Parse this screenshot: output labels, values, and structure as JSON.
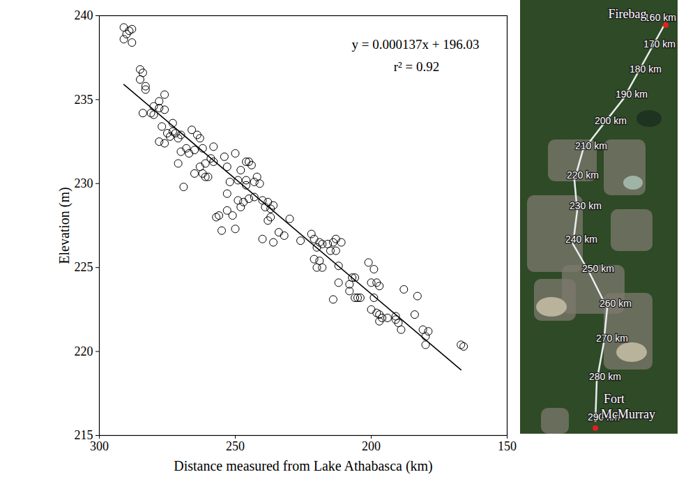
{
  "chart_data": {
    "type": "scatter",
    "x_label": "Distance measured from Lake Athabasca (km)",
    "y_label": "Elevation (m)",
    "xlim": [
      300,
      150
    ],
    "xticks": [
      300,
      250,
      200,
      150
    ],
    "ylim": [
      215,
      240
    ],
    "yticks": [
      215,
      220,
      225,
      230,
      235,
      240
    ],
    "marker": "open circle",
    "color": "#000000",
    "points": [
      [
        291,
        238.6
      ],
      [
        291,
        239.3
      ],
      [
        290,
        238.9
      ],
      [
        289,
        239.1
      ],
      [
        288,
        238.4
      ],
      [
        288,
        239.2
      ],
      [
        285,
        236.8
      ],
      [
        284,
        236.6
      ],
      [
        285,
        236.2
      ],
      [
        283,
        235.8
      ],
      [
        283,
        235.6
      ],
      [
        284,
        234.2
      ],
      [
        281,
        234.2
      ],
      [
        280,
        234.1
      ],
      [
        280,
        234.6
      ],
      [
        278,
        234.9
      ],
      [
        278,
        234.5
      ],
      [
        276,
        235.3
      ],
      [
        276,
        234.4
      ],
      [
        277,
        233.4
      ],
      [
        275,
        233.0
      ],
      [
        274,
        232.8
      ],
      [
        273,
        233.1
      ],
      [
        272,
        233.0
      ],
      [
        273,
        233.6
      ],
      [
        271,
        232.7
      ],
      [
        270,
        232.9
      ],
      [
        278,
        232.5
      ],
      [
        276,
        232.4
      ],
      [
        271,
        231.2
      ],
      [
        270,
        231.9
      ],
      [
        268,
        232.1
      ],
      [
        267,
        231.8
      ],
      [
        266,
        233.2
      ],
      [
        265,
        232.0
      ],
      [
        264,
        232.9
      ],
      [
        263,
        232.7
      ],
      [
        262,
        232.1
      ],
      [
        263,
        231.0
      ],
      [
        262,
        230.6
      ],
      [
        261,
        230.4
      ],
      [
        260,
        230.4
      ],
      [
        261,
        231.2
      ],
      [
        259,
        231.5
      ],
      [
        258,
        231.3
      ],
      [
        258,
        232.2
      ],
      [
        265,
        230.6
      ],
      [
        269,
        229.8
      ],
      [
        257,
        228.0
      ],
      [
        255,
        227.2
      ],
      [
        256,
        228.1
      ],
      [
        253,
        228.4
      ],
      [
        253,
        229.4
      ],
      [
        252,
        230.1
      ],
      [
        253,
        231.0
      ],
      [
        254,
        231.6
      ],
      [
        250,
        231.8
      ],
      [
        249,
        230.2
      ],
      [
        248,
        230.8
      ],
      [
        246,
        231.3
      ],
      [
        245,
        231.3
      ],
      [
        244,
        231.1
      ],
      [
        249,
        229.0
      ],
      [
        248,
        228.6
      ],
      [
        247,
        228.9
      ],
      [
        246,
        229.9
      ],
      [
        246,
        230.2
      ],
      [
        245,
        229.1
      ],
      [
        243,
        229.2
      ],
      [
        243,
        230.1
      ],
      [
        242,
        230.4
      ],
      [
        241,
        230.0
      ],
      [
        240,
        229.0
      ],
      [
        239,
        228.6
      ],
      [
        238,
        228.9
      ],
      [
        237,
        228.5
      ],
      [
        236,
        228.7
      ],
      [
        237,
        228.0
      ],
      [
        238,
        227.8
      ],
      [
        240,
        226.7
      ],
      [
        236,
        226.5
      ],
      [
        234,
        227.1
      ],
      [
        232,
        226.9
      ],
      [
        230,
        227.9
      ],
      [
        250,
        227.3
      ],
      [
        251,
        228.1
      ],
      [
        226,
        226.6
      ],
      [
        222,
        227.0
      ],
      [
        221,
        226.7
      ],
      [
        220,
        226.2
      ],
      [
        219,
        226.5
      ],
      [
        218,
        226.4
      ],
      [
        216,
        226.4
      ],
      [
        221,
        225.5
      ],
      [
        219,
        225.4
      ],
      [
        220,
        225.0
      ],
      [
        218,
        225.0
      ],
      [
        215,
        226.0
      ],
      [
        214,
        226.5
      ],
      [
        213,
        226.7
      ],
      [
        213,
        226.0
      ],
      [
        211,
        226.5
      ],
      [
        212,
        225.1
      ],
      [
        212,
        224.1
      ],
      [
        214,
        223.1
      ],
      [
        208,
        224.0
      ],
      [
        208,
        223.6
      ],
      [
        207,
        224.4
      ],
      [
        206,
        224.4
      ],
      [
        206,
        223.2
      ],
      [
        205,
        223.2
      ],
      [
        204,
        223.2
      ],
      [
        201,
        225.3
      ],
      [
        199,
        224.9
      ],
      [
        200,
        224.1
      ],
      [
        198,
        224.1
      ],
      [
        197,
        223.9
      ],
      [
        199,
        223.2
      ],
      [
        200,
        222.5
      ],
      [
        197,
        222.2
      ],
      [
        196,
        222.0
      ],
      [
        194,
        222.0
      ],
      [
        191,
        221.9
      ],
      [
        191,
        222.1
      ],
      [
        190,
        221.7
      ],
      [
        189,
        221.3
      ],
      [
        188,
        223.7
      ],
      [
        183,
        223.3
      ],
      [
        184,
        222.2
      ],
      [
        181,
        221.3
      ],
      [
        180,
        220.9
      ],
      [
        180,
        220.4
      ],
      [
        179,
        221.2
      ],
      [
        167,
        220.4
      ],
      [
        166,
        220.3
      ],
      [
        197,
        221.8
      ],
      [
        198,
        222.3
      ]
    ],
    "fit_line": {
      "x": [
        291,
        167
      ],
      "y": [
        235.9,
        218.91
      ]
    },
    "annotations": [
      "y = 0.000137x + 196.03",
      "r² = 0.92"
    ],
    "map": {
      "labels": [
        "160 km",
        "170 km",
        "180 km",
        "190 km",
        "200 km",
        "210 km",
        "220 km",
        "230 km",
        "240 km",
        "250 km",
        "260 km",
        "270 km",
        "280 km",
        "290 km"
      ],
      "places": [
        "Firebag",
        "Fort McMurray"
      ]
    }
  }
}
